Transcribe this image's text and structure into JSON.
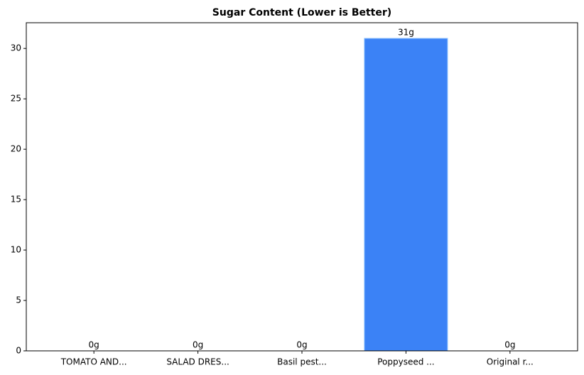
{
  "chart_data": {
    "type": "bar",
    "title": "Sugar Content (Lower is Better)",
    "categories": [
      "TOMATO AND...",
      "SALAD DRES...",
      "Basil pest...",
      "Poppyseed ...",
      "Original r..."
    ],
    "values": [
      0,
      0,
      0,
      31,
      0
    ],
    "value_labels": [
      "0g",
      "0g",
      "0g",
      "31g",
      "0g"
    ],
    "color": "#3b82f6",
    "ylim": [
      0,
      32.55
    ],
    "yticks": [
      0,
      5,
      10,
      15,
      20,
      25,
      30
    ],
    "grid": false
  }
}
